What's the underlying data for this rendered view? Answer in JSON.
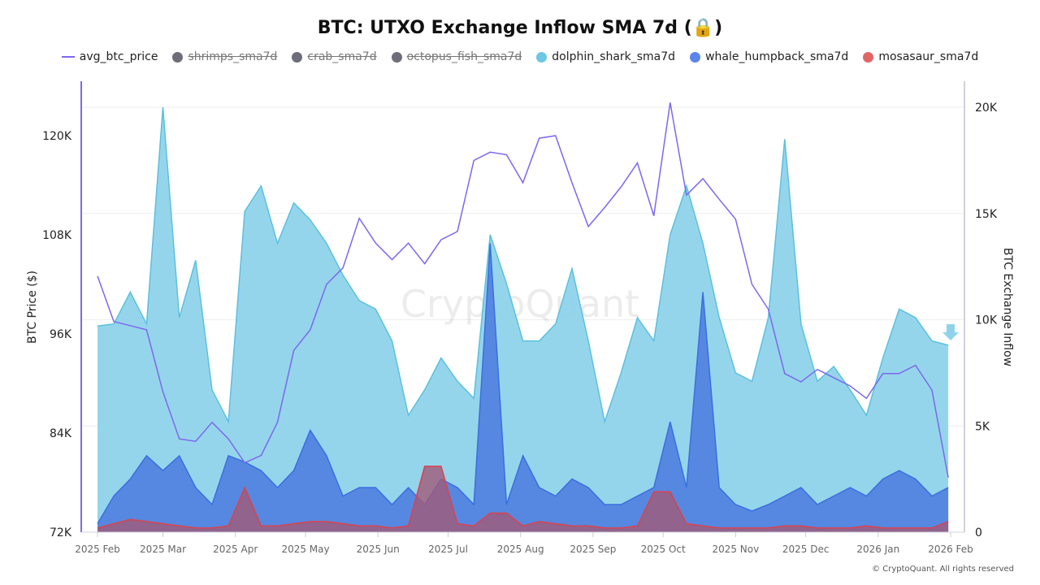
{
  "title": "BTC: UTXO Exchange Inflow SMA 7d (🔒)",
  "footer": "© CryptoQuant. All rights reserved",
  "watermark": "CryptoQuant",
  "legend": [
    {
      "label": "avg_btc_price",
      "color": "#7b68ee",
      "shape": "line",
      "active": true
    },
    {
      "label": "shrimps_sma7d",
      "color": "#6e6e7a",
      "shape": "dot",
      "active": false
    },
    {
      "label": "crab_sma7d",
      "color": "#6e6e7a",
      "shape": "dot",
      "active": false
    },
    {
      "label": "octopus_fish_sma7d",
      "color": "#6e6e7a",
      "shape": "dot",
      "active": false
    },
    {
      "label": "dolphin_shark_sma7d",
      "color": "#6cc8e4",
      "shape": "dot",
      "active": true
    },
    {
      "label": "whale_humpback_sma7d",
      "color": "#5b85ea",
      "shape": "dot",
      "active": true
    },
    {
      "label": "mosasaur_sma7d",
      "color": "#e06666",
      "shape": "dot",
      "active": true
    }
  ],
  "chart_data": {
    "type": "area",
    "title": "BTC: UTXO Exchange Inflow SMA 7d",
    "ylabel_left": "BTC Price ($)",
    "ylabel_right": "BTC Exchange Inflow",
    "ylim_left": [
      72000,
      126000
    ],
    "ylim_right": [
      0,
      21000
    ],
    "yticks_left": [
      "72K",
      "84K",
      "96K",
      "108K",
      "120K"
    ],
    "yticks_right": [
      "0",
      "5K",
      "10K",
      "15K",
      "20K"
    ],
    "xticks": [
      "2025 Feb",
      "2025 Mar",
      "2025 Apr",
      "2025 May",
      "2025 Jun",
      "2025 Jul",
      "2025 Aug",
      "2025 Sep",
      "2025 Oct",
      "2025 Nov",
      "2025 Dec",
      "2026 Jan",
      "2026 Feb"
    ],
    "grid": true,
    "legend_position": "top",
    "x_start": "2025-02-01",
    "x_step_days": 7,
    "series": [
      {
        "name": "avg_btc_price",
        "axis": "left",
        "unit": "K USD",
        "color": "#7b68ee",
        "values": [
          103,
          97.5,
          97,
          96.5,
          89,
          83.3,
          83,
          85.3,
          83.3,
          80.4,
          81.3,
          85.3,
          94,
          96.5,
          102,
          104,
          110,
          107,
          105,
          107,
          104.5,
          107.4,
          108.4,
          117,
          118,
          117.7,
          114.3,
          119.7,
          120,
          114.3,
          109,
          111.3,
          113.8,
          116.7,
          110.3,
          124,
          112.8,
          114.8,
          112.3,
          109.9,
          102,
          99,
          91.2,
          90.2,
          91.7,
          90.7,
          89.7,
          88.2,
          91.2,
          91.2,
          92.2,
          89.2,
          78.6
        ]
      },
      {
        "name": "dolphin_shark_sma7d",
        "axis": "right",
        "unit": "K BTC",
        "color": "#6cc8e4",
        "values": [
          9.7,
          9.8,
          11.3,
          9.8,
          20,
          10.1,
          12.8,
          6.7,
          5.2,
          15.1,
          16.3,
          13.6,
          15.5,
          14.7,
          13.6,
          12.1,
          10.9,
          10.5,
          9,
          5.5,
          6.7,
          8.2,
          7.1,
          6.3,
          14,
          11.7,
          9,
          9,
          9.8,
          12.4,
          9,
          5.2,
          7.5,
          10.1,
          9,
          14,
          16.3,
          13.6,
          10.1,
          7.5,
          7.1,
          10.1,
          18.5,
          9.8,
          7.1,
          7.8,
          6.7,
          5.5,
          8.2,
          10.5,
          10.1,
          9,
          8.8
        ]
      },
      {
        "name": "whale_humpback_sma7d",
        "axis": "right",
        "unit": "K BTC",
        "color": "#5b85ea",
        "values": [
          0.4,
          1.7,
          2.5,
          3.6,
          2.9,
          3.6,
          2.1,
          1.3,
          3.6,
          3.3,
          2.9,
          2.1,
          2.9,
          4.8,
          3.6,
          1.7,
          2.1,
          2.1,
          1.3,
          2.1,
          1.3,
          2.5,
          2.1,
          1.3,
          13.6,
          1.3,
          3.6,
          2.1,
          1.7,
          2.5,
          2.1,
          1.3,
          1.3,
          1.7,
          2.1,
          5.2,
          2.1,
          11.3,
          2.1,
          1.3,
          1,
          1.3,
          1.7,
          2.1,
          1.3,
          1.7,
          2.1,
          1.7,
          2.5,
          2.9,
          2.5,
          1.7,
          2.1
        ]
      },
      {
        "name": "mosasaur_sma7d",
        "axis": "right",
        "unit": "K BTC",
        "color": "#e06666",
        "values": [
          0.2,
          0.4,
          0.6,
          0.5,
          0.4,
          0.3,
          0.2,
          0.2,
          0.3,
          2.1,
          0.3,
          0.3,
          0.4,
          0.5,
          0.5,
          0.4,
          0.3,
          0.3,
          0.2,
          0.3,
          3.1,
          3.1,
          0.4,
          0.3,
          0.9,
          0.9,
          0.3,
          0.5,
          0.4,
          0.3,
          0.3,
          0.2,
          0.2,
          0.3,
          1.9,
          1.9,
          0.4,
          0.3,
          0.2,
          0.2,
          0.2,
          0.2,
          0.3,
          0.3,
          0.2,
          0.2,
          0.2,
          0.3,
          0.2,
          0.2,
          0.2,
          0.2,
          0.5
        ]
      }
    ]
  }
}
